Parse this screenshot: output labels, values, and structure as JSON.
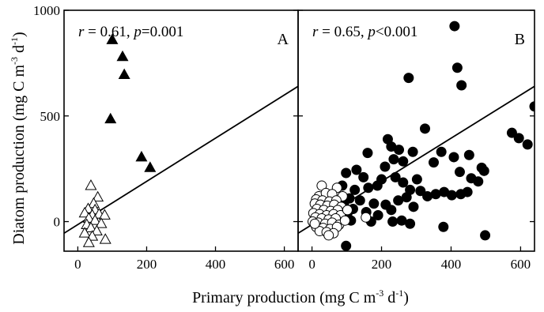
{
  "chart_data": [
    {
      "panel": "A",
      "type": "scatter",
      "annotation": {
        "r": "r",
        "r_value": " = 0.61, ",
        "p": "p",
        "p_value": "=0.001"
      },
      "panel_label": "A",
      "xlim": [
        -40,
        640
      ],
      "ylim": [
        -140,
        1000
      ],
      "xticks": [
        0,
        200,
        400,
        600
      ],
      "yticks": [
        0,
        500,
        1000
      ],
      "regression_line": [
        {
          "x": -40,
          "y": -55
        },
        {
          "x": 640,
          "y": 640
        }
      ],
      "series": [
        {
          "marker": "filled-triangle",
          "points": [
            {
              "x": 100,
              "y": 860
            },
            {
              "x": 130,
              "y": 780
            },
            {
              "x": 135,
              "y": 695
            },
            {
              "x": 95,
              "y": 485
            },
            {
              "x": 185,
              "y": 305
            },
            {
              "x": 210,
              "y": 255
            }
          ]
        },
        {
          "marker": "open-triangle",
          "points": [
            {
              "x": 38,
              "y": 170
            },
            {
              "x": 58,
              "y": 115
            },
            {
              "x": 46,
              "y": 85
            },
            {
              "x": 30,
              "y": 60
            },
            {
              "x": 50,
              "y": 55
            },
            {
              "x": 20,
              "y": 40
            },
            {
              "x": 42,
              "y": 30
            },
            {
              "x": 62,
              "y": 35
            },
            {
              "x": 78,
              "y": 30
            },
            {
              "x": 32,
              "y": 15
            },
            {
              "x": 50,
              "y": 5
            },
            {
              "x": 68,
              "y": -10
            },
            {
              "x": 26,
              "y": -15
            },
            {
              "x": 38,
              "y": -30
            },
            {
              "x": 55,
              "y": -45
            },
            {
              "x": 20,
              "y": -55
            },
            {
              "x": 42,
              "y": -70
            },
            {
              "x": 80,
              "y": -85
            },
            {
              "x": 32,
              "y": -100
            }
          ]
        }
      ]
    },
    {
      "panel": "B",
      "type": "scatter",
      "annotation": {
        "r": "r",
        "r_value": " = 0.65, ",
        "p": "p",
        "p_value": "<0.001"
      },
      "panel_label": "B",
      "xlim": [
        -40,
        640
      ],
      "ylim": [
        -140,
        1000
      ],
      "xticks": [
        0,
        200,
        400,
        600
      ],
      "yticks": [
        0,
        500,
        1000
      ],
      "regression_line": [
        {
          "x": -40,
          "y": -55
        },
        {
          "x": 640,
          "y": 640
        }
      ],
      "series": [
        {
          "marker": "filled-circle",
          "points": [
            {
              "x": 410,
              "y": 925
            },
            {
              "x": 418,
              "y": 728
            },
            {
              "x": 430,
              "y": 645
            },
            {
              "x": 278,
              "y": 680
            },
            {
              "x": 640,
              "y": 545
            },
            {
              "x": 575,
              "y": 420
            },
            {
              "x": 595,
              "y": 395
            },
            {
              "x": 620,
              "y": 365
            },
            {
              "x": 325,
              "y": 440
            },
            {
              "x": 218,
              "y": 390
            },
            {
              "x": 228,
              "y": 355
            },
            {
              "x": 250,
              "y": 340
            },
            {
              "x": 160,
              "y": 325
            },
            {
              "x": 235,
              "y": 295
            },
            {
              "x": 262,
              "y": 285
            },
            {
              "x": 290,
              "y": 330
            },
            {
              "x": 372,
              "y": 330
            },
            {
              "x": 408,
              "y": 305
            },
            {
              "x": 452,
              "y": 315
            },
            {
              "x": 488,
              "y": 255
            },
            {
              "x": 495,
              "y": 240
            },
            {
              "x": 350,
              "y": 280
            },
            {
              "x": 425,
              "y": 235
            },
            {
              "x": 210,
              "y": 260
            },
            {
              "x": 128,
              "y": 245
            },
            {
              "x": 98,
              "y": 230
            },
            {
              "x": 148,
              "y": 210
            },
            {
              "x": 200,
              "y": 200
            },
            {
              "x": 240,
              "y": 210
            },
            {
              "x": 302,
              "y": 200
            },
            {
              "x": 188,
              "y": 170
            },
            {
              "x": 162,
              "y": 160
            },
            {
              "x": 123,
              "y": 150
            },
            {
              "x": 87,
              "y": 170
            },
            {
              "x": 262,
              "y": 185
            },
            {
              "x": 282,
              "y": 150
            },
            {
              "x": 312,
              "y": 145
            },
            {
              "x": 332,
              "y": 120
            },
            {
              "x": 356,
              "y": 130
            },
            {
              "x": 380,
              "y": 140
            },
            {
              "x": 402,
              "y": 125
            },
            {
              "x": 428,
              "y": 130
            },
            {
              "x": 447,
              "y": 140
            },
            {
              "x": 478,
              "y": 190
            },
            {
              "x": 108,
              "y": 110
            },
            {
              "x": 138,
              "y": 100
            },
            {
              "x": 178,
              "y": 85
            },
            {
              "x": 212,
              "y": 80
            },
            {
              "x": 248,
              "y": 100
            },
            {
              "x": 272,
              "y": 115
            },
            {
              "x": 92,
              "y": 80
            },
            {
              "x": 118,
              "y": 60
            },
            {
              "x": 156,
              "y": 45
            },
            {
              "x": 190,
              "y": 30
            },
            {
              "x": 228,
              "y": 55
            },
            {
              "x": 258,
              "y": 5
            },
            {
              "x": 282,
              "y": -10
            },
            {
              "x": 292,
              "y": 70
            },
            {
              "x": 102,
              "y": 40
            },
            {
              "x": 170,
              "y": 0
            },
            {
              "x": 112,
              "y": 5
            },
            {
              "x": 232,
              "y": 0
            },
            {
              "x": 378,
              "y": -25
            },
            {
              "x": 498,
              "y": -65
            },
            {
              "x": 98,
              "y": -115
            },
            {
              "x": 458,
              "y": 205
            }
          ]
        },
        {
          "marker": "open-circle",
          "points": [
            {
              "x": 28,
              "y": 170
            },
            {
              "x": 72,
              "y": 160
            },
            {
              "x": 20,
              "y": 120
            },
            {
              "x": 40,
              "y": 135
            },
            {
              "x": 58,
              "y": 130
            },
            {
              "x": 88,
              "y": 120
            },
            {
              "x": 12,
              "y": 105
            },
            {
              "x": 30,
              "y": 100
            },
            {
              "x": 50,
              "y": 95
            },
            {
              "x": 70,
              "y": 100
            },
            {
              "x": 8,
              "y": 85
            },
            {
              "x": 24,
              "y": 80
            },
            {
              "x": 44,
              "y": 75
            },
            {
              "x": 64,
              "y": 80
            },
            {
              "x": 84,
              "y": 70
            },
            {
              "x": 14,
              "y": 60
            },
            {
              "x": 34,
              "y": 55
            },
            {
              "x": 54,
              "y": 50
            },
            {
              "x": 74,
              "y": 55
            },
            {
              "x": 4,
              "y": 40
            },
            {
              "x": 22,
              "y": 35
            },
            {
              "x": 42,
              "y": 30
            },
            {
              "x": 62,
              "y": 35
            },
            {
              "x": 82,
              "y": 30
            },
            {
              "x": 10,
              "y": 20
            },
            {
              "x": 28,
              "y": 15
            },
            {
              "x": 48,
              "y": 10
            },
            {
              "x": 68,
              "y": 15
            },
            {
              "x": 2,
              "y": 0
            },
            {
              "x": 18,
              "y": -5
            },
            {
              "x": 38,
              "y": -10
            },
            {
              "x": 58,
              "y": -5
            },
            {
              "x": 78,
              "y": -15
            },
            {
              "x": 12,
              "y": -25
            },
            {
              "x": 32,
              "y": -30
            },
            {
              "x": 52,
              "y": -35
            },
            {
              "x": 72,
              "y": -25
            },
            {
              "x": 22,
              "y": -45
            },
            {
              "x": 42,
              "y": -50
            },
            {
              "x": 62,
              "y": -55
            },
            {
              "x": 155,
              "y": 20
            },
            {
              "x": 102,
              "y": 55
            },
            {
              "x": 95,
              "y": 5
            },
            {
              "x": 8,
              "y": -10
            },
            {
              "x": 48,
              "y": -65
            }
          ]
        }
      ]
    }
  ],
  "axes": {
    "ylabel_parts": {
      "a": "Diatom production (mg C m",
      "a_sup": "-3",
      "b": " d",
      "b_sup": "-1",
      "c": ")"
    },
    "xlabel_parts": {
      "a": "Primary production (mg C m",
      "a_sup": "-3",
      "b": " d",
      "b_sup": "-1",
      "c": ")"
    }
  }
}
